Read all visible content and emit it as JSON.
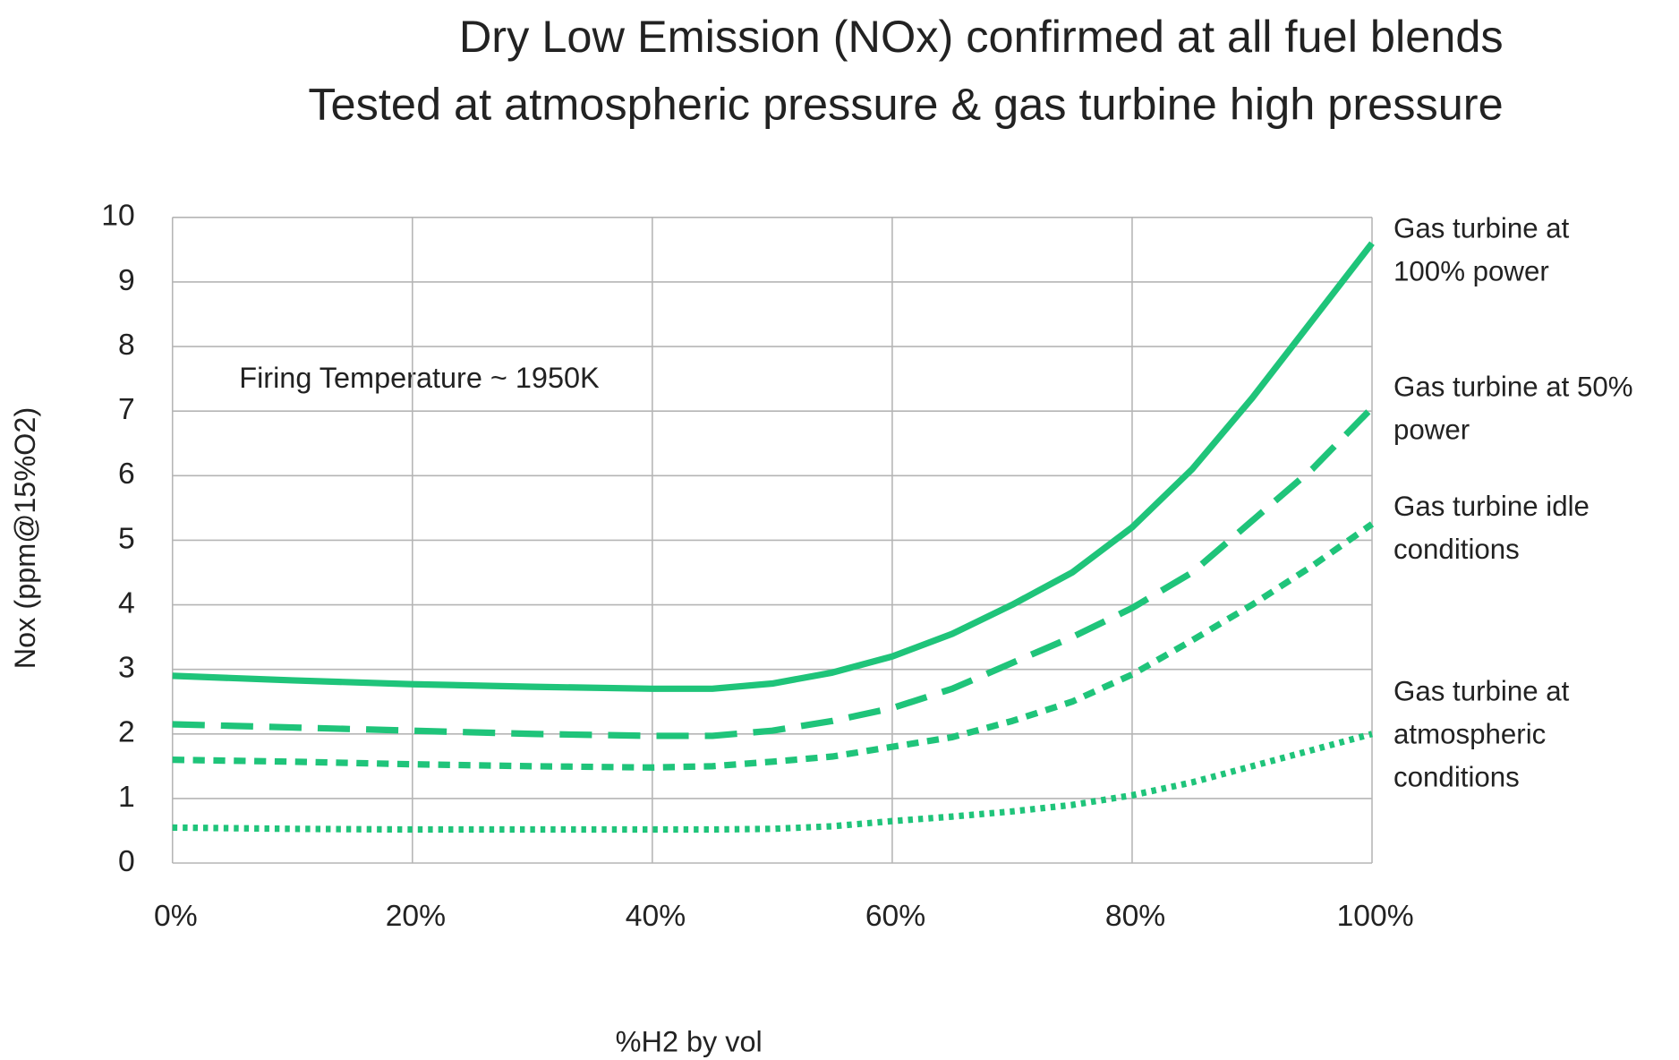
{
  "chart_data": {
    "type": "line",
    "title": "Dry Low Emission (NOx) confirmed at all fuel blends",
    "subtitle": "Tested at atmospheric pressure & gas turbine high pressure",
    "annotation": "Firing Temperature ~ 1950K",
    "x_label": "%H2 by vol",
    "y_label": "Nox (ppm@15%O2)",
    "x": [
      0,
      10,
      20,
      30,
      40,
      45,
      50,
      55,
      60,
      65,
      70,
      75,
      80,
      85,
      90,
      95,
      100
    ],
    "series": [
      {
        "name": "Gas turbine at 100% power",
        "color": "#1fc47a",
        "dash": "solid",
        "values": [
          2.9,
          2.83,
          2.77,
          2.73,
          2.7,
          2.7,
          2.78,
          2.95,
          3.2,
          3.55,
          4.0,
          4.5,
          5.2,
          6.1,
          7.2,
          8.4,
          9.6
        ]
      },
      {
        "name": "Gas turbine at 50% power",
        "color": "#1fc47a",
        "dash": "dashed",
        "values": [
          2.15,
          2.1,
          2.05,
          2.0,
          1.97,
          1.97,
          2.05,
          2.2,
          2.4,
          2.7,
          3.1,
          3.5,
          3.95,
          4.5,
          5.3,
          6.1,
          7.05
        ]
      },
      {
        "name": "Gas turbine idle conditions",
        "color": "#1fc47a",
        "dash": "short-dashed",
        "values": [
          1.6,
          1.57,
          1.53,
          1.5,
          1.48,
          1.5,
          1.57,
          1.65,
          1.8,
          1.95,
          2.2,
          2.5,
          2.92,
          3.45,
          4.0,
          4.6,
          5.25
        ]
      },
      {
        "name": "Gas turbine at atmospheric conditions",
        "color": "#1fc47a",
        "dash": "dotted",
        "values": [
          0.55,
          0.53,
          0.52,
          0.52,
          0.52,
          0.52,
          0.53,
          0.57,
          0.65,
          0.72,
          0.8,
          0.9,
          1.05,
          1.25,
          1.5,
          1.75,
          2.0
        ]
      }
    ],
    "xlim": [
      0,
      100
    ],
    "xticks": [
      {
        "value": 0,
        "label": "0%"
      },
      {
        "value": 20,
        "label": "20%"
      },
      {
        "value": 40,
        "label": "40%"
      },
      {
        "value": 60,
        "label": "60%"
      },
      {
        "value": 80,
        "label": "80%"
      },
      {
        "value": 100,
        "label": "100%"
      }
    ],
    "ylim": [
      0,
      10
    ],
    "yticks": [
      0,
      1,
      2,
      3,
      4,
      5,
      6,
      7,
      8,
      9,
      10
    ],
    "grid": true
  }
}
